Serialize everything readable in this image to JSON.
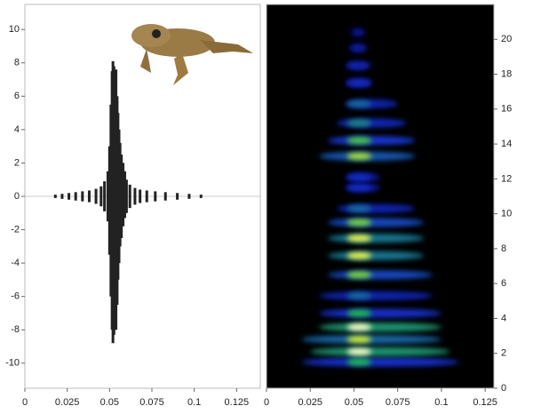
{
  "chart_data": [
    {
      "type": "waveform",
      "color": "#222222",
      "xlim": [
        0,
        0.139
      ],
      "ylim": [
        -11.5,
        11.5
      ],
      "xticks": [
        0,
        0.025,
        0.05,
        0.075,
        0.1,
        0.125
      ],
      "yticks": [
        -10,
        -8,
        -6,
        -4,
        -2,
        0,
        2,
        4,
        6,
        8,
        10
      ],
      "x": [
        0.018,
        0.022,
        0.026,
        0.03,
        0.034,
        0.038,
        0.042,
        0.045,
        0.047,
        0.049,
        0.05,
        0.0508,
        0.0515,
        0.052,
        0.0526,
        0.0532,
        0.0538,
        0.0545,
        0.055,
        0.0556,
        0.0562,
        0.057,
        0.058,
        0.059,
        0.06,
        0.062,
        0.065,
        0.068,
        0.072,
        0.077,
        0.083,
        0.09,
        0.097,
        0.104
      ],
      "upper": [
        0.1,
        0.15,
        0.2,
        0.25,
        0.3,
        0.35,
        0.45,
        0.6,
        0.9,
        1.5,
        3,
        5.5,
        7.5,
        8.1,
        7.8,
        7,
        7.6,
        6,
        5,
        4,
        3.2,
        2.5,
        2,
        1.5,
        1,
        0.7,
        0.5,
        0.4,
        0.35,
        0.3,
        0.25,
        0.2,
        0.15,
        0.1
      ],
      "lower": [
        -0.1,
        -0.15,
        -0.2,
        -0.25,
        -0.3,
        -0.35,
        -0.45,
        -0.6,
        -0.9,
        -1.5,
        -3.5,
        -6,
        -8,
        -8.8,
        -8.3,
        -7.5,
        -8,
        -6.5,
        -5,
        -4,
        -3,
        -2.5,
        -1.8,
        -1.3,
        -1,
        -0.7,
        -0.5,
        -0.4,
        -0.35,
        -0.3,
        -0.25,
        -0.2,
        -0.15,
        -0.1
      ]
    },
    {
      "type": "spectrogram",
      "xlim": [
        0,
        0.13
      ],
      "ylim": [
        0,
        22
      ],
      "xticks": [
        0,
        0.025,
        0.05,
        0.075,
        0.1,
        0.125
      ],
      "yticks": [
        0,
        2,
        4,
        6,
        8,
        10,
        12,
        14,
        16,
        18,
        20
      ],
      "bands": [
        {
          "y": 1.5,
          "x0": 0.02,
          "x1": 0.11,
          "intensity": 0.6
        },
        {
          "y": 2.1,
          "x0": 0.025,
          "x1": 0.105,
          "intensity": 0.95
        },
        {
          "y": 2.8,
          "x0": 0.02,
          "x1": 0.1,
          "intensity": 0.8
        },
        {
          "y": 3.5,
          "x0": 0.03,
          "x1": 0.1,
          "intensity": 0.95
        },
        {
          "y": 4.3,
          "x0": 0.03,
          "x1": 0.1,
          "intensity": 0.6
        },
        {
          "y": 5.3,
          "x0": 0.03,
          "x1": 0.095,
          "intensity": 0.45
        },
        {
          "y": 6.5,
          "x0": 0.035,
          "x1": 0.095,
          "intensity": 0.7
        },
        {
          "y": 7.6,
          "x0": 0.035,
          "x1": 0.09,
          "intensity": 0.85
        },
        {
          "y": 8.6,
          "x0": 0.035,
          "x1": 0.09,
          "intensity": 0.85
        },
        {
          "y": 9.5,
          "x0": 0.035,
          "x1": 0.09,
          "intensity": 0.7
        },
        {
          "y": 10.3,
          "x0": 0.04,
          "x1": 0.085,
          "intensity": 0.45
        },
        {
          "y": 11.5,
          "x0": 0.045,
          "x1": 0.065,
          "intensity": 0.3
        },
        {
          "y": 12.1,
          "x0": 0.045,
          "x1": 0.065,
          "intensity": 0.3
        },
        {
          "y": 13.3,
          "x0": 0.03,
          "x1": 0.085,
          "intensity": 0.75
        },
        {
          "y": 14.2,
          "x0": 0.035,
          "x1": 0.085,
          "intensity": 0.65
        },
        {
          "y": 15.2,
          "x0": 0.04,
          "x1": 0.08,
          "intensity": 0.5
        },
        {
          "y": 16.3,
          "x0": 0.045,
          "x1": 0.075,
          "intensity": 0.45
        },
        {
          "y": 17.5,
          "x0": 0.045,
          "x1": 0.06,
          "intensity": 0.3
        },
        {
          "y": 18.5,
          "x0": 0.045,
          "x1": 0.058,
          "intensity": 0.25
        },
        {
          "y": 19.5,
          "x0": 0.047,
          "x1": 0.056,
          "intensity": 0.18
        },
        {
          "y": 20.4,
          "x0": 0.048,
          "x1": 0.055,
          "intensity": 0.12
        }
      ]
    }
  ]
}
